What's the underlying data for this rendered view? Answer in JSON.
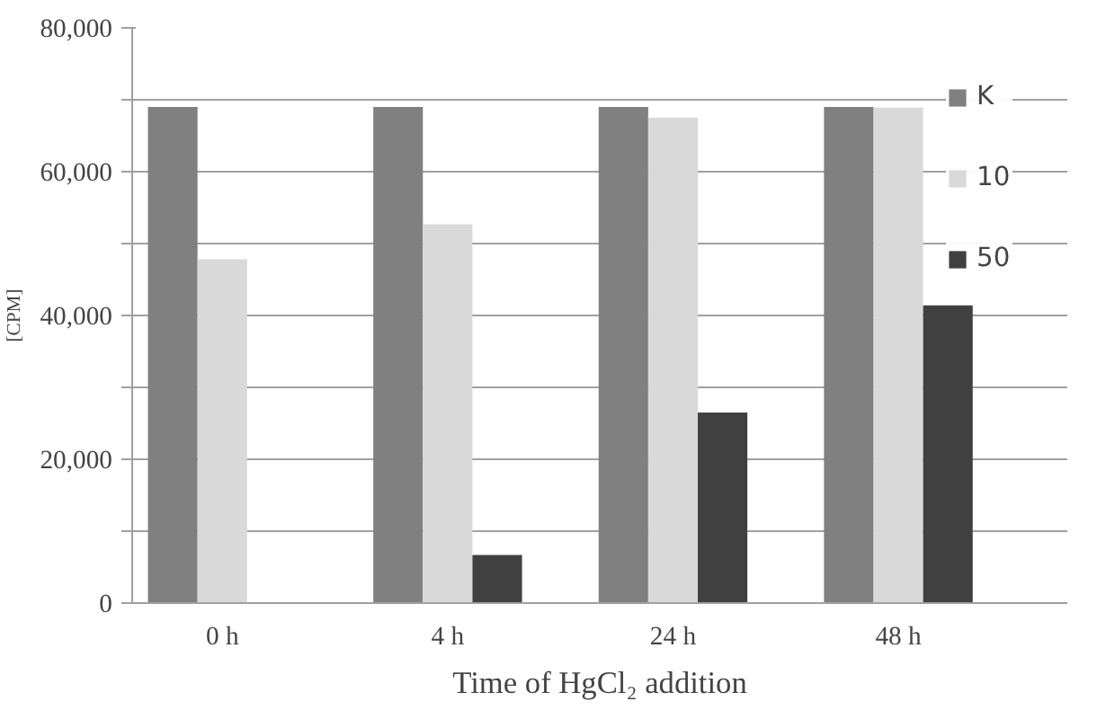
{
  "chart_data": {
    "type": "bar",
    "xlabel": "Time of HgCl₂ addition",
    "ylabel": "[CPM]",
    "categories": [
      "0 h",
      "4 h",
      "24 h",
      "48 h"
    ],
    "series": [
      {
        "name": "K",
        "color": "#808080",
        "values": [
          69000,
          69000,
          69000,
          69000
        ]
      },
      {
        "name": "10",
        "color": "#d9d9d9",
        "values": [
          47800,
          52700,
          67500,
          68900
        ]
      },
      {
        "name": "50",
        "color": "#404040",
        "values": [
          0,
          6700,
          26500,
          41400
        ]
      }
    ],
    "ylim": [
      0,
      80000
    ],
    "yticks": [
      0,
      {
        "value": 10000,
        "label": null
      },
      {
        "value": 20000,
        "label": "20,000"
      },
      {
        "value": 30000,
        "label": null
      },
      {
        "value": 40000,
        "label": "40,000"
      },
      {
        "value": 50000,
        "label": null
      },
      {
        "value": 60000,
        "label": "60,000"
      },
      {
        "value": 70000,
        "label": null
      },
      {
        "value": 80000,
        "label": "80,000"
      }
    ],
    "grid": "y",
    "legend": "top right"
  }
}
